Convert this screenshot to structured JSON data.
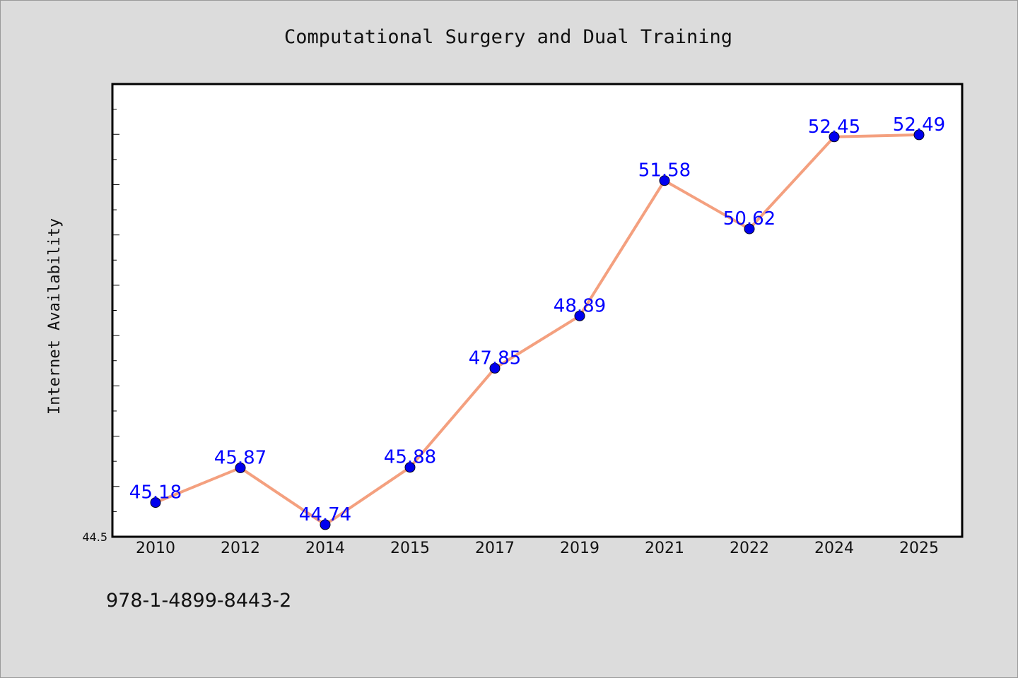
{
  "chart_data": {
    "type": "line",
    "title": "Computational Surgery and Dual Training",
    "xlabel": "",
    "ylabel": "Internet Availability",
    "categories": [
      "2010",
      "2012",
      "2014",
      "2015",
      "2017",
      "2019",
      "2021",
      "2022",
      "2024",
      "2025"
    ],
    "series": [
      {
        "values": [
          45.18,
          45.87,
          44.74,
          45.88,
          47.85,
          48.89,
          51.58,
          50.62,
          52.45,
          52.49
        ],
        "data_labels": [
          "45.18",
          "45.87",
          "44.74",
          "45.88",
          "47.85",
          "48.89",
          "51.58",
          "50.62",
          "52.45",
          "52.49"
        ]
      }
    ],
    "ylim": [
      44.5,
      53.5
    ],
    "y_min_label": "44.5",
    "y_tick_step_minor": 0.5,
    "grid": false,
    "legend": "none",
    "colors": {
      "line": "#f4a07f",
      "marker": "#0000ee",
      "label": "#0000ff",
      "plot_background": "#ffffff",
      "page_background": "#dcdcdc"
    }
  },
  "footer": {
    "isbn": "978-1-4899-8443-2"
  }
}
